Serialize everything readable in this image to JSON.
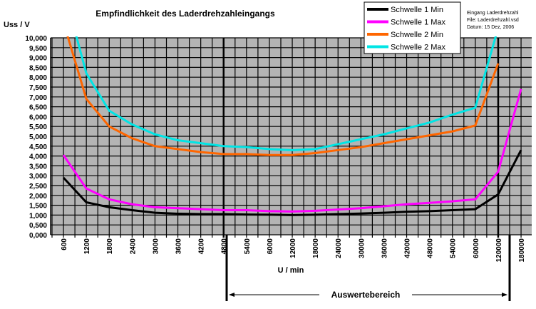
{
  "chart_data": {
    "type": "line",
    "title": "Empfindlichkeit des Laderdrehzahleingangs",
    "ylabel": "Uss / V",
    "xlabel": "U / min",
    "ylim": [
      0,
      10
    ],
    "ytick_labels": [
      "0,000",
      "0,500",
      "1,000",
      "1,500",
      "2,000",
      "2,500",
      "3,000",
      "3,500",
      "4,000",
      "4,500",
      "5,000",
      "5,500",
      "6,000",
      "6,500",
      "7,000",
      "7,500",
      "8,000",
      "8,500",
      "9,000",
      "9,500",
      "10,000"
    ],
    "categories": [
      "600",
      "1200",
      "1800",
      "2400",
      "3000",
      "3600",
      "4200",
      "4800",
      "5400",
      "6000",
      "12000",
      "18000",
      "24000",
      "30000",
      "36000",
      "42000",
      "48000",
      "54000",
      "60000",
      "120000",
      "180000"
    ],
    "series": [
      {
        "name": "Schwelle 1 Min",
        "color": "#000000",
        "values": [
          2.9,
          1.65,
          1.4,
          1.25,
          1.12,
          1.07,
          1.05,
          1.05,
          1.03,
          1.02,
          1.0,
          1.02,
          1.05,
          1.08,
          1.12,
          1.17,
          1.2,
          1.25,
          1.3,
          2.05,
          4.3
        ]
      },
      {
        "name": "Schwelle 1 Max",
        "color": "#ff00ff",
        "values": [
          4.05,
          2.35,
          1.8,
          1.55,
          1.4,
          1.35,
          1.3,
          1.25,
          1.25,
          1.2,
          1.18,
          1.22,
          1.28,
          1.35,
          1.45,
          1.55,
          1.62,
          1.7,
          1.8,
          3.2,
          7.4
        ]
      },
      {
        "name": "Schwelle 2 Min",
        "color": "#ff6600",
        "values": [
          10.8,
          6.9,
          5.5,
          4.9,
          4.5,
          4.35,
          4.2,
          4.1,
          4.1,
          4.05,
          4.05,
          4.15,
          4.3,
          4.45,
          4.65,
          4.85,
          5.05,
          5.25,
          5.55,
          8.7,
          null
        ]
      },
      {
        "name": "Schwelle 2 Max",
        "color": "#00e5e5",
        "values": [
          12.5,
          8.2,
          6.3,
          5.6,
          5.1,
          4.8,
          4.65,
          4.5,
          4.45,
          4.35,
          4.3,
          4.35,
          4.6,
          4.85,
          5.1,
          5.4,
          5.7,
          6.1,
          6.45,
          10.5,
          null
        ]
      }
    ],
    "legend_position": "top-right",
    "annotations": {
      "info": [
        "Eingang Laderdrehzahl",
        "File: Laderdrehzahl.vsd",
        "Datum: 15 Dez, 2006"
      ],
      "range_label": "Auswertebereich"
    },
    "grid": true
  }
}
